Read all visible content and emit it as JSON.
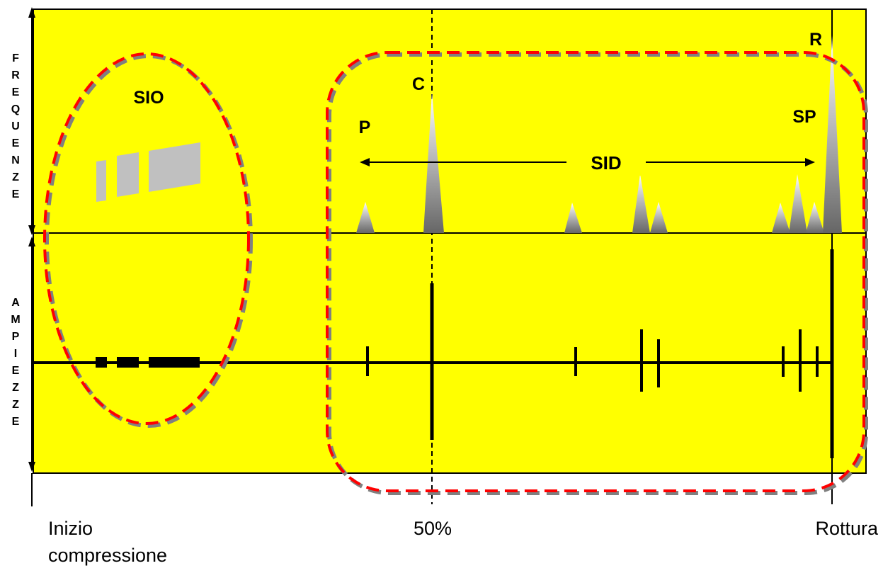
{
  "colors": {
    "background": "#ffff00",
    "dashed_outer": "#808080",
    "dashed_inner": "#ff0000",
    "rectangle": "#c0c0c0",
    "lines": "#000000"
  },
  "vertical_labels": {
    "top": "FREQUENZE",
    "bottom": "AMPIEZZE"
  },
  "labels": {
    "sio": "SIO",
    "sid": "SID",
    "p": "P",
    "c": "C",
    "sp": "SP",
    "r": "R"
  },
  "x_axis": {
    "start_line1": "Inizio",
    "start_line2": "compressione",
    "middle": "50%",
    "end": "Rottura"
  }
}
